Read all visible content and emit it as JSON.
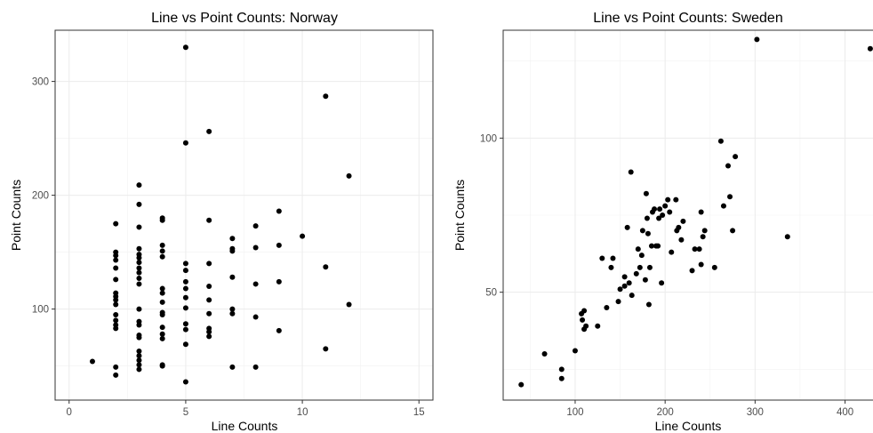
{
  "chart_data": [
    {
      "type": "scatter",
      "title": "Line vs Point Counts: Norway",
      "xlabel": "Line Counts",
      "ylabel": "Point Counts",
      "xlim": [
        -0.6,
        15.6
      ],
      "ylim": [
        20,
        345
      ],
      "x_ticks": [
        0,
        5,
        10,
        15
      ],
      "y_ticks": [
        100,
        200,
        300
      ],
      "x_tick_labels": [
        "0",
        "5",
        "10",
        "15"
      ],
      "y_tick_labels": [
        "100",
        "200",
        "300"
      ],
      "grid": true,
      "points": [
        [
          1,
          54
        ],
        [
          2,
          175
        ],
        [
          2,
          150
        ],
        [
          2,
          147
        ],
        [
          2,
          143
        ],
        [
          2,
          136
        ],
        [
          2,
          126
        ],
        [
          2,
          114
        ],
        [
          2,
          111
        ],
        [
          2,
          108
        ],
        [
          2,
          104
        ],
        [
          2,
          95
        ],
        [
          2,
          90
        ],
        [
          2,
          86
        ],
        [
          2,
          83
        ],
        [
          2,
          49
        ],
        [
          2,
          42
        ],
        [
          3,
          209
        ],
        [
          3,
          192
        ],
        [
          3,
          172
        ],
        [
          3,
          153
        ],
        [
          3,
          148
        ],
        [
          3,
          145
        ],
        [
          3,
          141
        ],
        [
          3,
          136
        ],
        [
          3,
          132
        ],
        [
          3,
          127
        ],
        [
          3,
          122
        ],
        [
          3,
          100
        ],
        [
          3,
          89
        ],
        [
          3,
          86
        ],
        [
          3,
          77
        ],
        [
          3,
          75
        ],
        [
          3,
          63
        ],
        [
          3,
          59
        ],
        [
          3,
          55
        ],
        [
          3,
          51
        ],
        [
          3,
          47
        ],
        [
          4,
          180
        ],
        [
          4,
          178
        ],
        [
          4,
          156
        ],
        [
          4,
          151
        ],
        [
          4,
          146
        ],
        [
          4,
          118
        ],
        [
          4,
          114
        ],
        [
          4,
          106
        ],
        [
          4,
          97
        ],
        [
          4,
          95
        ],
        [
          4,
          84
        ],
        [
          4,
          78
        ],
        [
          4,
          74
        ],
        [
          4,
          51
        ],
        [
          4,
          50
        ],
        [
          5,
          330
        ],
        [
          5,
          246
        ],
        [
          5,
          140
        ],
        [
          5,
          134
        ],
        [
          5,
          124
        ],
        [
          5,
          118
        ],
        [
          5,
          110
        ],
        [
          5,
          101
        ],
        [
          5,
          87
        ],
        [
          5,
          82
        ],
        [
          5,
          69
        ],
        [
          5,
          36
        ],
        [
          6,
          256
        ],
        [
          6,
          178
        ],
        [
          6,
          140
        ],
        [
          6,
          120
        ],
        [
          6,
          108
        ],
        [
          6,
          96
        ],
        [
          6,
          83
        ],
        [
          6,
          80
        ],
        [
          6,
          76
        ],
        [
          7,
          162
        ],
        [
          7,
          153
        ],
        [
          7,
          151
        ],
        [
          7,
          128
        ],
        [
          7,
          100
        ],
        [
          7,
          96
        ],
        [
          7,
          49
        ],
        [
          8,
          173
        ],
        [
          8,
          154
        ],
        [
          8,
          122
        ],
        [
          8,
          93
        ],
        [
          8,
          49
        ],
        [
          9,
          186
        ],
        [
          9,
          156
        ],
        [
          9,
          124
        ],
        [
          9,
          81
        ],
        [
          10,
          164
        ],
        [
          11,
          287
        ],
        [
          11,
          137
        ],
        [
          11,
          65
        ],
        [
          12,
          217
        ],
        [
          12,
          104
        ]
      ]
    },
    {
      "type": "scatter",
      "title": "Line vs Point Counts: Sweden",
      "xlabel": "Line Counts",
      "ylabel": "Point Counts",
      "xlim": [
        20,
        435
      ],
      "ylim": [
        15,
        135
      ],
      "x_ticks": [
        100,
        200,
        300,
        400
      ],
      "y_ticks": [
        50,
        100
      ],
      "x_tick_labels": [
        "100",
        "200",
        "300",
        "400"
      ],
      "y_tick_labels": [
        "50",
        "100"
      ],
      "grid": true,
      "points": [
        [
          40,
          20
        ],
        [
          66,
          30
        ],
        [
          85,
          25
        ],
        [
          85,
          22
        ],
        [
          100,
          31
        ],
        [
          107,
          43
        ],
        [
          108,
          41
        ],
        [
          110,
          44
        ],
        [
          110,
          38
        ],
        [
          112,
          39
        ],
        [
          125,
          39
        ],
        [
          130,
          61
        ],
        [
          135,
          45
        ],
        [
          140,
          58
        ],
        [
          142,
          61
        ],
        [
          148,
          47
        ],
        [
          150,
          51
        ],
        [
          155,
          55
        ],
        [
          155,
          52
        ],
        [
          158,
          71
        ],
        [
          160,
          53
        ],
        [
          162,
          89
        ],
        [
          163,
          49
        ],
        [
          168,
          56
        ],
        [
          170,
          64
        ],
        [
          172,
          58
        ],
        [
          174,
          62
        ],
        [
          175,
          70
        ],
        [
          178,
          54
        ],
        [
          179,
          82
        ],
        [
          180,
          74
        ],
        [
          181,
          69
        ],
        [
          182,
          46
        ],
        [
          183,
          58
        ],
        [
          185,
          65
        ],
        [
          186,
          76
        ],
        [
          188,
          77
        ],
        [
          190,
          65
        ],
        [
          192,
          65
        ],
        [
          193,
          74
        ],
        [
          194,
          77
        ],
        [
          196,
          53
        ],
        [
          197,
          75
        ],
        [
          200,
          78
        ],
        [
          203,
          80
        ],
        [
          205,
          76
        ],
        [
          207,
          63
        ],
        [
          212,
          80
        ],
        [
          213,
          70
        ],
        [
          215,
          71
        ],
        [
          218,
          67
        ],
        [
          220,
          73
        ],
        [
          230,
          57
        ],
        [
          233,
          64
        ],
        [
          238,
          64
        ],
        [
          240,
          76
        ],
        [
          240,
          59
        ],
        [
          242,
          68
        ],
        [
          244,
          70
        ],
        [
          255,
          58
        ],
        [
          262,
          99
        ],
        [
          265,
          78
        ],
        [
          270,
          91
        ],
        [
          272,
          81
        ],
        [
          275,
          70
        ],
        [
          278,
          94
        ],
        [
          302,
          132
        ],
        [
          336,
          68
        ],
        [
          428,
          129
        ]
      ]
    }
  ]
}
